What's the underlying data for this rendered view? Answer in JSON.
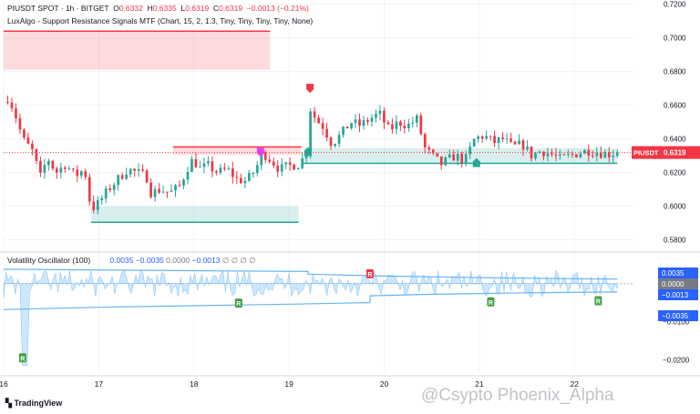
{
  "header": {
    "symbol_line": "PIUSDT SPOT · 1h · BITGET",
    "o_label": "O",
    "o_value": "0.6332",
    "h_label": "H",
    "h_value": "0.6335",
    "l_label": "L",
    "l_value": "0.6319",
    "c_label": "C",
    "c_value": "0.6319",
    "change": "−0.0013 (−0.21%)",
    "indicator": "LuxAlgo - Support Resistance Signals MTF (Chart, 15, 2, 1.3, Tiny, Tiny, Tiny, Tiny, None)"
  },
  "oscillator_header": {
    "title": "Volatility Oscillator (100)",
    "v1": "0.0035",
    "v2": "−0.0035",
    "v3": "0.0000",
    "v4": "−0.0013",
    "nulls": "∅ ∅ ∅ ∅"
  },
  "brand": "TradingView",
  "watermark": "@Csypto Phoenix_Alpha",
  "colors": {
    "up": "#26a69a",
    "down": "#f23645",
    "zone_red": "#f23645",
    "zone_green": "#26a69a",
    "osc_fill": "#90caf9",
    "osc_band": "#64b5f6",
    "price_label": "#f23645"
  },
  "chart_data": {
    "type": "candlestick",
    "symbol": "PIUSDT",
    "last_price": 0.6319,
    "price_axis": {
      "ylim": [
        0.5755,
        0.7225
      ],
      "ticks": [
        0.58,
        0.6,
        0.62,
        0.64,
        0.66,
        0.68,
        0.7,
        0.72
      ],
      "tick_labels": [
        "0.5800",
        "0.6000",
        "0.6200",
        "0.6400",
        "0.6600",
        "0.6800",
        "0.7000",
        "0.7200"
      ],
      "last_label": "PIUSDT"
    },
    "x_axis": {
      "range_days": [
        16.0,
        22.62
      ],
      "ticks": [
        16,
        17,
        18,
        19,
        20,
        21,
        22
      ],
      "tick_labels": [
        "16",
        "17",
        "18",
        "19",
        "20",
        "21",
        "22"
      ]
    },
    "close_path": [
      [
        16.0,
        0.662
      ],
      [
        16.05,
        0.665
      ],
      [
        16.12,
        0.655
      ],
      [
        16.2,
        0.64
      ],
      [
        16.3,
        0.633
      ],
      [
        16.4,
        0.615
      ],
      [
        16.45,
        0.63
      ],
      [
        16.55,
        0.62
      ],
      [
        16.65,
        0.625
      ],
      [
        16.75,
        0.618
      ],
      [
        16.85,
        0.622
      ],
      [
        16.92,
        0.598
      ],
      [
        17.0,
        0.602
      ],
      [
        17.1,
        0.61
      ],
      [
        17.2,
        0.616
      ],
      [
        17.3,
        0.622
      ],
      [
        17.4,
        0.62
      ],
      [
        17.5,
        0.618
      ],
      [
        17.55,
        0.608
      ],
      [
        17.65,
        0.61
      ],
      [
        17.75,
        0.608
      ],
      [
        17.85,
        0.612
      ],
      [
        17.95,
        0.625
      ],
      [
        18.0,
        0.628
      ],
      [
        18.05,
        0.622
      ],
      [
        18.15,
        0.624
      ],
      [
        18.25,
        0.62
      ],
      [
        18.35,
        0.622
      ],
      [
        18.45,
        0.616
      ],
      [
        18.55,
        0.615
      ],
      [
        18.65,
        0.622
      ],
      [
        18.72,
        0.632
      ],
      [
        18.8,
        0.628
      ],
      [
        18.9,
        0.622
      ],
      [
        19.0,
        0.624
      ],
      [
        19.1,
        0.625
      ],
      [
        19.17,
        0.63
      ],
      [
        19.2,
        0.641
      ],
      [
        19.24,
        0.668
      ],
      [
        19.27,
        0.652
      ],
      [
        19.35,
        0.648
      ],
      [
        19.45,
        0.637
      ],
      [
        19.55,
        0.643
      ],
      [
        19.65,
        0.65
      ],
      [
        19.75,
        0.648
      ],
      [
        19.85,
        0.652
      ],
      [
        19.95,
        0.655
      ],
      [
        20.05,
        0.645
      ],
      [
        20.15,
        0.65
      ],
      [
        20.25,
        0.648
      ],
      [
        20.35,
        0.652
      ],
      [
        20.42,
        0.635
      ],
      [
        20.5,
        0.63
      ],
      [
        20.6,
        0.625
      ],
      [
        20.68,
        0.628
      ],
      [
        20.75,
        0.63
      ],
      [
        20.85,
        0.627
      ],
      [
        20.95,
        0.64
      ],
      [
        21.05,
        0.642
      ],
      [
        21.15,
        0.638
      ],
      [
        21.25,
        0.64
      ],
      [
        21.35,
        0.635
      ],
      [
        21.45,
        0.637
      ],
      [
        21.55,
        0.63
      ],
      [
        21.65,
        0.633
      ],
      [
        21.75,
        0.631
      ],
      [
        21.85,
        0.628
      ],
      [
        21.95,
        0.63
      ],
      [
        22.05,
        0.632
      ],
      [
        22.15,
        0.633
      ],
      [
        22.25,
        0.632
      ],
      [
        22.35,
        0.631
      ],
      [
        22.45,
        0.6319
      ]
    ],
    "zones": [
      {
        "kind": "resistance",
        "x": [
          16.0,
          18.8
        ],
        "y": [
          0.681,
          0.704
        ]
      },
      {
        "kind": "resistance",
        "x": [
          17.78,
          19.13
        ],
        "y": [
          0.6305,
          0.6352
        ]
      },
      {
        "kind": "support",
        "x": [
          16.92,
          19.1
        ],
        "y": [
          0.5905,
          0.6
        ]
      },
      {
        "kind": "support",
        "x": [
          19.15,
          22.45
        ],
        "y": [
          0.6255,
          0.6345
        ]
      }
    ],
    "signals": [
      {
        "x": 18.7,
        "price": 0.6315,
        "type": "down"
      },
      {
        "x": 19.22,
        "price": 0.6695,
        "type": "down"
      },
      {
        "x": 19.2,
        "price": 0.633,
        "type": "up"
      },
      {
        "x": 20.97,
        "price": 0.6265,
        "type": "up"
      }
    ],
    "oscillator": {
      "title": "Volatility Oscillator (100)",
      "ylim": [
        -0.0235,
        0.0052
      ],
      "ticks": [
        0,
        -0.01,
        -0.02
      ],
      "tick_labels": [
        "0.0000",
        "−0.0100",
        "−0.0200"
      ],
      "upper_band": [
        [
          16.0,
          0.0038
        ],
        [
          18.0,
          0.0034
        ],
        [
          19.2,
          0.0032
        ],
        [
          19.2,
          0.0025
        ],
        [
          20.0,
          0.002
        ],
        [
          21.0,
          0.0016
        ],
        [
          22.0,
          0.0013
        ],
        [
          22.45,
          0.0012
        ]
      ],
      "lower_band": [
        [
          16.0,
          -0.0068
        ],
        [
          17.0,
          -0.0062
        ],
        [
          18.0,
          -0.0058
        ],
        [
          19.0,
          -0.0054
        ],
        [
          19.85,
          -0.005
        ],
        [
          19.85,
          -0.0032
        ],
        [
          20.5,
          -0.0028
        ],
        [
          21.5,
          -0.0024
        ],
        [
          22.45,
          -0.0022
        ]
      ],
      "value_axis_labels": [
        {
          "text": "0.0035",
          "style": "blue"
        },
        {
          "text": "0.0000",
          "style": "gray"
        },
        {
          "text": "−0.0013",
          "style": "blue"
        },
        {
          "text": "−0.0035",
          "style": "blue"
        }
      ],
      "signals": [
        {
          "x": 16.2,
          "value": -0.0195,
          "label": "R",
          "type": "up"
        },
        {
          "x": 18.47,
          "value": -0.0051,
          "label": "R",
          "type": "up"
        },
        {
          "x": 19.85,
          "value": 0.0026,
          "label": "R",
          "type": "down"
        },
        {
          "x": 21.12,
          "value": -0.0048,
          "label": "R",
          "type": "up"
        },
        {
          "x": 22.25,
          "value": -0.0045,
          "label": "R",
          "type": "up"
        }
      ]
    }
  }
}
